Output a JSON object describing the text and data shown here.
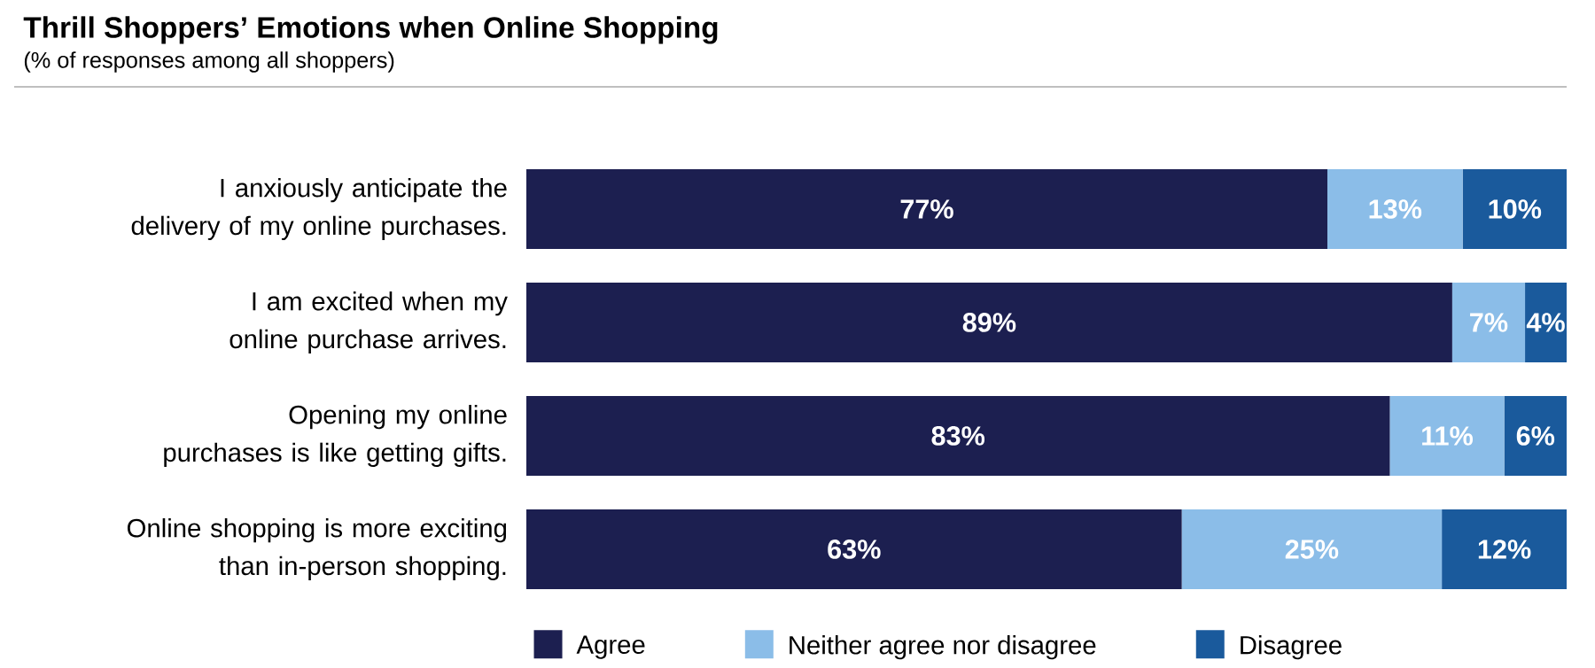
{
  "chart_data": {
    "type": "bar",
    "orientation": "horizontal",
    "stacked": true,
    "title": "Thrill Shoppers’ Emotions when Online Shopping",
    "subtitle": "(% of responses among all shoppers)",
    "categories": [
      "I anxiously anticipate the delivery of my online purchases.",
      "I am excited when my online purchase arrives.",
      "Opening my online purchases is like getting gifts.",
      "Online shopping is more exciting than in-person shopping."
    ],
    "series": [
      {
        "name": "Agree",
        "color": "#1c1f50",
        "values": [
          77,
          89,
          83,
          63
        ],
        "value_labels": [
          "77%",
          "89%",
          "83%",
          "63%"
        ]
      },
      {
        "name": "Neither agree nor disagree",
        "color": "#8bbde8",
        "values": [
          13,
          7,
          11,
          25
        ],
        "value_labels": [
          "13%",
          "7%",
          "11%",
          "25%"
        ]
      },
      {
        "name": "Disagree",
        "color": "#1a5a9c",
        "values": [
          10,
          4,
          6,
          12
        ],
        "value_labels": [
          "10%",
          "4%",
          "6%",
          "12%"
        ]
      }
    ],
    "legend": "bottom"
  }
}
